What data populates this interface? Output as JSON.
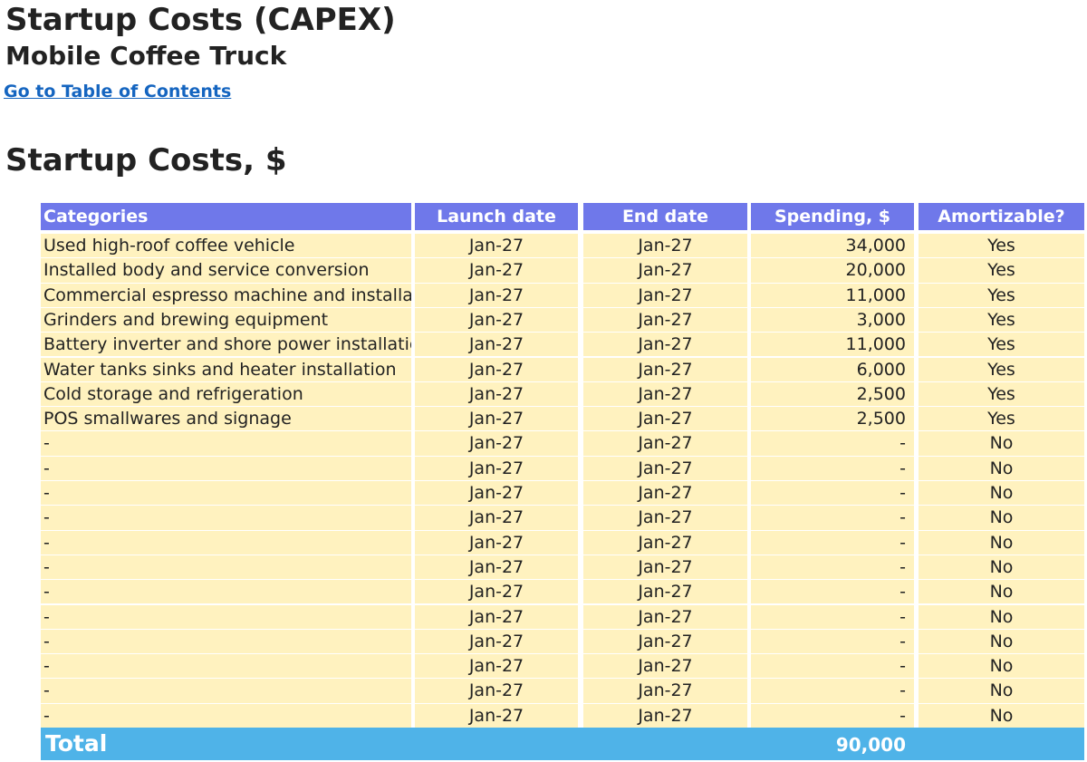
{
  "header": {
    "title": "Startup Costs (CAPEX)",
    "subtitle": "Mobile Coffee Truck",
    "toc_link": "Go to Table of Contents"
  },
  "section": {
    "title": "Startup Costs, $"
  },
  "table": {
    "columns": [
      "Categories",
      "Launch date",
      "End date",
      "Spending, $",
      "Amortizable?"
    ],
    "rows": [
      {
        "category": "Used high-roof coffee vehicle",
        "launch": "Jan-27",
        "end": "Jan-27",
        "spending": "34,000",
        "amortizable": "Yes"
      },
      {
        "category": "Installed body and service conversion",
        "launch": "Jan-27",
        "end": "Jan-27",
        "spending": "20,000",
        "amortizable": "Yes"
      },
      {
        "category": "Commercial espresso machine and installation",
        "launch": "Jan-27",
        "end": "Jan-27",
        "spending": "11,000",
        "amortizable": "Yes"
      },
      {
        "category": "Grinders and brewing equipment",
        "launch": "Jan-27",
        "end": "Jan-27",
        "spending": "3,000",
        "amortizable": "Yes"
      },
      {
        "category": "Battery inverter and shore power installation",
        "launch": "Jan-27",
        "end": "Jan-27",
        "spending": "11,000",
        "amortizable": "Yes"
      },
      {
        "category": "Water tanks sinks and heater installation",
        "launch": "Jan-27",
        "end": "Jan-27",
        "spending": "6,000",
        "amortizable": "Yes"
      },
      {
        "category": "Cold storage and refrigeration",
        "launch": "Jan-27",
        "end": "Jan-27",
        "spending": "2,500",
        "amortizable": "Yes"
      },
      {
        "category": "POS smallwares and signage",
        "launch": "Jan-27",
        "end": "Jan-27",
        "spending": "2,500",
        "amortizable": "Yes"
      },
      {
        "category": "-",
        "launch": "Jan-27",
        "end": "Jan-27",
        "spending": "-",
        "amortizable": "No"
      },
      {
        "category": "-",
        "launch": "Jan-27",
        "end": "Jan-27",
        "spending": "-",
        "amortizable": "No"
      },
      {
        "category": "-",
        "launch": "Jan-27",
        "end": "Jan-27",
        "spending": "-",
        "amortizable": "No"
      },
      {
        "category": "-",
        "launch": "Jan-27",
        "end": "Jan-27",
        "spending": "-",
        "amortizable": "No"
      },
      {
        "category": "-",
        "launch": "Jan-27",
        "end": "Jan-27",
        "spending": "-",
        "amortizable": "No"
      },
      {
        "category": "-",
        "launch": "Jan-27",
        "end": "Jan-27",
        "spending": "-",
        "amortizable": "No"
      },
      {
        "category": "-",
        "launch": "Jan-27",
        "end": "Jan-27",
        "spending": "-",
        "amortizable": "No"
      },
      {
        "category": "-",
        "launch": "Jan-27",
        "end": "Jan-27",
        "spending": "-",
        "amortizable": "No"
      },
      {
        "category": "-",
        "launch": "Jan-27",
        "end": "Jan-27",
        "spending": "-",
        "amortizable": "No"
      },
      {
        "category": "-",
        "launch": "Jan-27",
        "end": "Jan-27",
        "spending": "-",
        "amortizable": "No"
      },
      {
        "category": "-",
        "launch": "Jan-27",
        "end": "Jan-27",
        "spending": "-",
        "amortizable": "No"
      },
      {
        "category": "-",
        "launch": "Jan-27",
        "end": "Jan-27",
        "spending": "-",
        "amortizable": "No"
      }
    ],
    "total_label": "Total",
    "total_value": "90,000"
  },
  "colors": {
    "header_bg": "#6f78ea",
    "row_bg": "#fff2bf",
    "total_bg": "#4fb3e8",
    "link": "#1565c0"
  }
}
